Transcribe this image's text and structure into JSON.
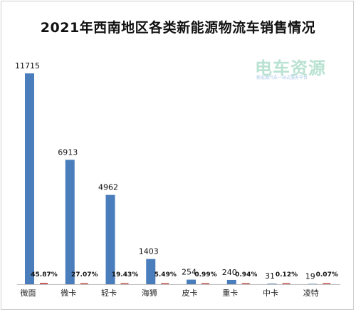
{
  "title": "2021年西南地区各类新能源物流车销售情况",
  "watermark": {
    "name": "电车资源",
    "tagline": "新能源汽车一站式服务平台"
  },
  "chart_data": {
    "type": "bar",
    "title": "2021年西南地区各类新能源物流车销售情况",
    "categories": [
      "微面",
      "微卡",
      "轻卡",
      "海狮",
      "皮卡",
      "重卡",
      "中卡",
      "凌特"
    ],
    "series": [
      {
        "values": [
          11715,
          6913,
          4962,
          1403,
          254,
          240,
          31,
          19
        ],
        "color": "#4a7dbb"
      },
      {
        "values": [
          45.87,
          27.07,
          19.43,
          5.49,
          0.99,
          0.94,
          0.12,
          0.07
        ],
        "color": "#c0504d"
      }
    ],
    "value_labels": [
      "11715",
      "6913",
      "4962",
      "1403",
      "254",
      "240",
      "31",
      "19"
    ],
    "percent_labels": [
      "45.87%",
      "27.07%",
      "19.43%",
      "5.49%",
      "0.99%",
      "0.94%",
      "0.12%",
      "0.07%"
    ],
    "ylim": [
      0,
      11715
    ],
    "grid": false,
    "legend": "none"
  }
}
